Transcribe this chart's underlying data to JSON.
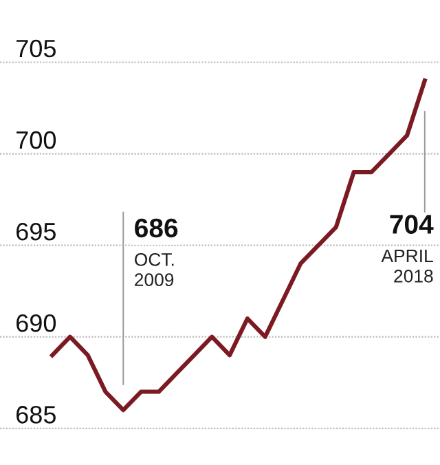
{
  "chart_data": {
    "type": "line",
    "categories": [
      null,
      null,
      null,
      null,
      null,
      null,
      null,
      null,
      null,
      null,
      null,
      null,
      null,
      null,
      null,
      null,
      null,
      null,
      null,
      null,
      null,
      null
    ],
    "series": [
      {
        "color": "#7b1a22",
        "values": [
          689,
          690,
          689,
          687,
          686,
          687,
          687,
          688,
          689,
          690,
          689,
          691,
          690,
          692,
          694,
          695,
          696,
          699,
          699,
          700,
          701,
          704
        ]
      }
    ],
    "ylim": [
      683,
      708.4
    ],
    "yticks": [
      685,
      690,
      695,
      700,
      705
    ],
    "grid": "y",
    "tick_labels": "y",
    "marker": "none",
    "line_style": "solid",
    "annotations": [
      "686\nOCT.\n2009",
      "704\nAPRIL\n2018"
    ]
  }
}
